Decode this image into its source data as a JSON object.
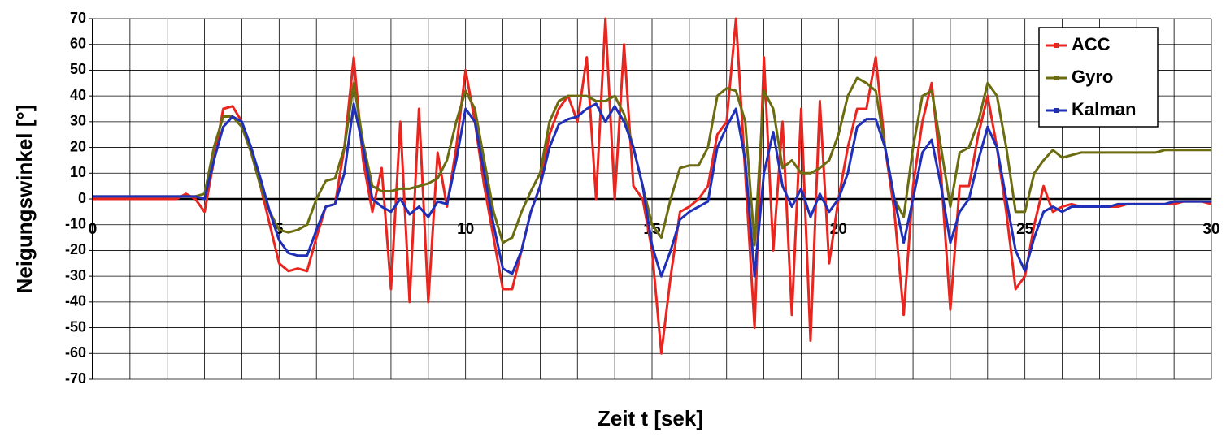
{
  "chart_data": {
    "type": "line",
    "x_label": "Zeit t [sek]",
    "y_label": "Neigungswinkel [°]",
    "x": [
      0,
      0.25,
      0.5,
      0.75,
      1,
      1.25,
      1.5,
      1.75,
      2,
      2.25,
      2.5,
      2.75,
      3,
      3.25,
      3.5,
      3.75,
      4,
      4.25,
      4.5,
      4.75,
      5,
      5.25,
      5.5,
      5.75,
      6,
      6.25,
      6.5,
      6.75,
      7,
      7.25,
      7.5,
      7.75,
      8,
      8.25,
      8.5,
      8.75,
      9,
      9.25,
      9.5,
      9.75,
      10,
      10.25,
      10.5,
      10.75,
      11,
      11.25,
      11.5,
      11.75,
      12,
      12.25,
      12.5,
      12.75,
      13,
      13.25,
      13.5,
      13.75,
      14,
      14.25,
      14.5,
      14.75,
      15,
      15.25,
      15.5,
      15.75,
      16,
      16.25,
      16.5,
      16.75,
      17,
      17.25,
      17.5,
      17.75,
      18,
      18.25,
      18.5,
      18.75,
      19,
      19.25,
      19.5,
      19.75,
      20,
      20.25,
      20.5,
      20.75,
      21,
      21.25,
      21.5,
      21.75,
      22,
      22.25,
      22.5,
      22.75,
      23,
      23.25,
      23.5,
      23.75,
      24,
      24.25,
      24.5,
      24.75,
      25,
      25.25,
      25.5,
      25.75,
      26,
      26.25,
      26.5,
      26.75,
      27,
      27.25,
      27.5,
      27.75,
      28,
      28.25,
      28.5,
      28.75,
      29,
      29.25,
      29.5,
      29.75,
      30
    ],
    "series": [
      {
        "name": "ACC",
        "color": "#e8261f",
        "values": [
          0,
          0,
          0,
          0,
          0,
          0,
          0,
          0,
          0,
          0,
          2,
          0,
          -5,
          15,
          35,
          36,
          30,
          18,
          5,
          -10,
          -25,
          -28,
          -27,
          -28,
          -15,
          -3,
          -2,
          20,
          55,
          15,
          -5,
          12,
          -35,
          30,
          -40,
          35,
          -40,
          18,
          -3,
          20,
          50,
          30,
          5,
          -15,
          -35,
          -35,
          -20,
          -5,
          5,
          25,
          35,
          40,
          30,
          55,
          0,
          70,
          0,
          60,
          5,
          0,
          -20,
          -60,
          -30,
          -5,
          -3,
          0,
          5,
          25,
          30,
          70,
          10,
          -50,
          55,
          -20,
          30,
          -45,
          35,
          -55,
          38,
          -25,
          0,
          20,
          35,
          35,
          55,
          20,
          -5,
          -45,
          5,
          30,
          45,
          10,
          -43,
          5,
          5,
          25,
          40,
          20,
          -5,
          -35,
          -30,
          -10,
          5,
          -5,
          -3,
          -2,
          -3,
          -3,
          -3,
          -3,
          -3,
          -2,
          -2,
          -2,
          -2,
          -2,
          -2,
          -1,
          -1,
          -1,
          -2
        ]
      },
      {
        "name": "Gyro",
        "color": "#6b6b10",
        "values": [
          1,
          1,
          1,
          1,
          1,
          1,
          1,
          1,
          1,
          1,
          1,
          1,
          2,
          20,
          32,
          32,
          28,
          18,
          5,
          -5,
          -12,
          -13,
          -12,
          -10,
          0,
          7,
          8,
          20,
          45,
          22,
          5,
          3,
          3,
          4,
          4,
          5,
          6,
          8,
          15,
          30,
          42,
          35,
          15,
          -5,
          -17,
          -15,
          -5,
          3,
          10,
          30,
          38,
          40,
          40,
          40,
          38,
          38,
          40,
          33,
          20,
          5,
          -10,
          -15,
          0,
          12,
          13,
          13,
          20,
          40,
          43,
          42,
          30,
          -18,
          42,
          35,
          12,
          15,
          10,
          10,
          12,
          15,
          25,
          40,
          47,
          45,
          42,
          20,
          0,
          -7,
          20,
          40,
          42,
          20,
          -3,
          18,
          20,
          30,
          45,
          40,
          20,
          -5,
          -5,
          10,
          15,
          19,
          16,
          17,
          18,
          18,
          18,
          18,
          18,
          18,
          18,
          18,
          18,
          19,
          19,
          19,
          19,
          19,
          19
        ]
      },
      {
        "name": "Kalman",
        "color": "#1f2fb8",
        "values": [
          1,
          1,
          1,
          1,
          1,
          1,
          1,
          1,
          1,
          1,
          1,
          1,
          0,
          15,
          28,
          32,
          30,
          20,
          8,
          -5,
          -16,
          -21,
          -22,
          -22,
          -12,
          -3,
          -2,
          10,
          37,
          20,
          0,
          -3,
          -5,
          0,
          -6,
          -3,
          -7,
          -1,
          -2,
          15,
          35,
          30,
          10,
          -10,
          -27,
          -29,
          -20,
          -5,
          5,
          20,
          29,
          31,
          32,
          35,
          37,
          30,
          36,
          30,
          20,
          5,
          -18,
          -30,
          -20,
          -8,
          -5,
          -3,
          -1,
          20,
          28,
          35,
          15,
          -30,
          10,
          26,
          5,
          -3,
          4,
          -7,
          2,
          -5,
          0,
          10,
          28,
          31,
          31,
          20,
          0,
          -17,
          0,
          18,
          23,
          5,
          -17,
          -5,
          0,
          15,
          28,
          20,
          0,
          -20,
          -28,
          -15,
          -5,
          -3,
          -5,
          -3,
          -3,
          -3,
          -3,
          -3,
          -2,
          -2,
          -2,
          -2,
          -2,
          -2,
          -1,
          -1,
          -1,
          -1,
          -1
        ]
      }
    ],
    "xlim": [
      0,
      30
    ],
    "xticks": [
      0,
      5,
      10,
      15,
      20,
      25,
      30
    ],
    "ylim": [
      -70,
      70
    ],
    "yticks": [
      -70,
      -60,
      -50,
      -40,
      -30,
      -20,
      -10,
      0,
      10,
      20,
      30,
      40,
      50,
      60,
      70
    ],
    "grid": true,
    "legend": "upper right"
  }
}
